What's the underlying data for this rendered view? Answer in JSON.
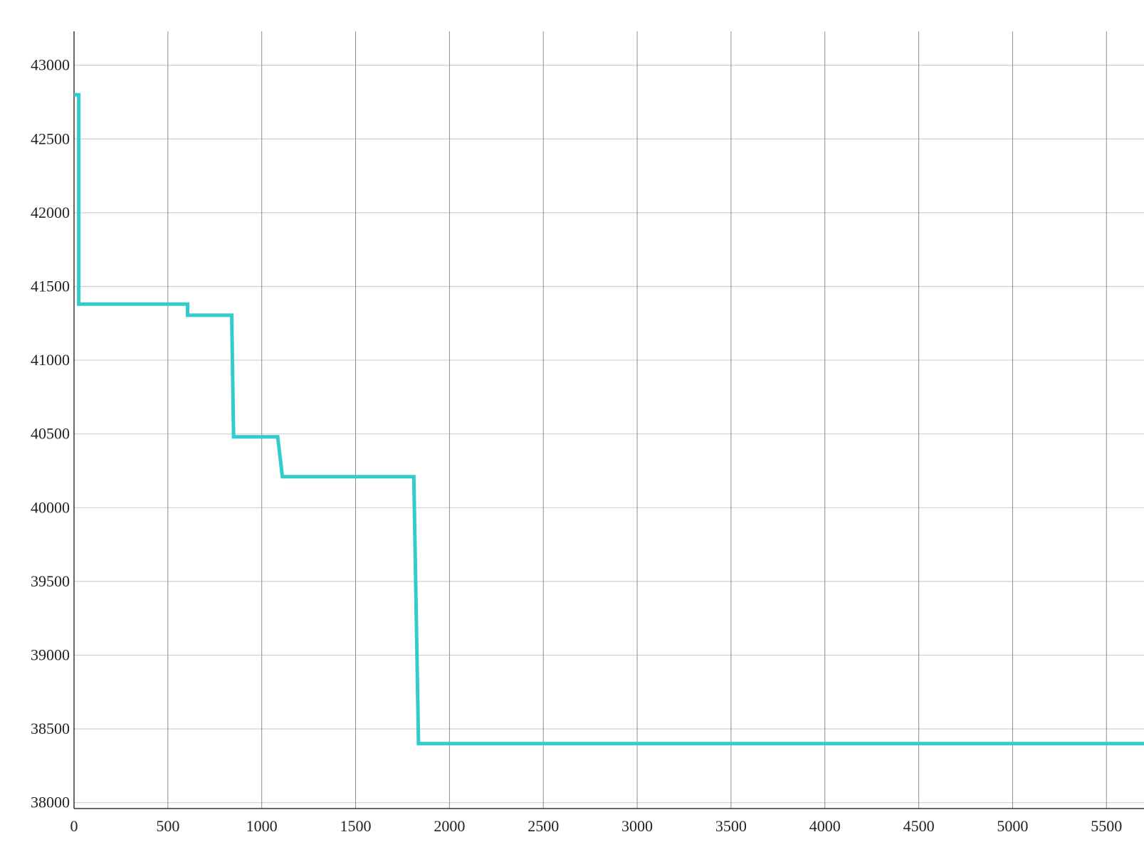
{
  "chart_data": {
    "type": "line",
    "title": "",
    "xlabel": "",
    "ylabel": "",
    "xlim": [
      0,
      5700
    ],
    "ylim": [
      37960,
      43230
    ],
    "grid": true,
    "x_ticks": [
      0,
      500,
      1000,
      1500,
      2000,
      2500,
      3000,
      3500,
      4000,
      4500,
      5000,
      5500
    ],
    "x_tick_labels": [
      "0",
      "500",
      "1000",
      "1500",
      "2000",
      "2500",
      "3000",
      "3500",
      "4000",
      "4500",
      "5000",
      "5500"
    ],
    "y_ticks": [
      38000,
      38500,
      39000,
      39500,
      40000,
      40500,
      41000,
      41500,
      42000,
      42500,
      43000
    ],
    "y_tick_labels": [
      "38000",
      "38500",
      "39000",
      "39500",
      "40000",
      "40500",
      "41000",
      "41500",
      "42000",
      "42500",
      "43000"
    ],
    "series": [
      {
        "color": "#33cccc",
        "x": [
          0,
          25,
          25,
          605,
          605,
          840,
          850,
          1085,
          1110,
          1810,
          1835,
          5700
        ],
        "y": [
          42800,
          42800,
          41380,
          41380,
          41305,
          41305,
          40480,
          40480,
          40210,
          40210,
          38400,
          38400
        ]
      }
    ]
  }
}
